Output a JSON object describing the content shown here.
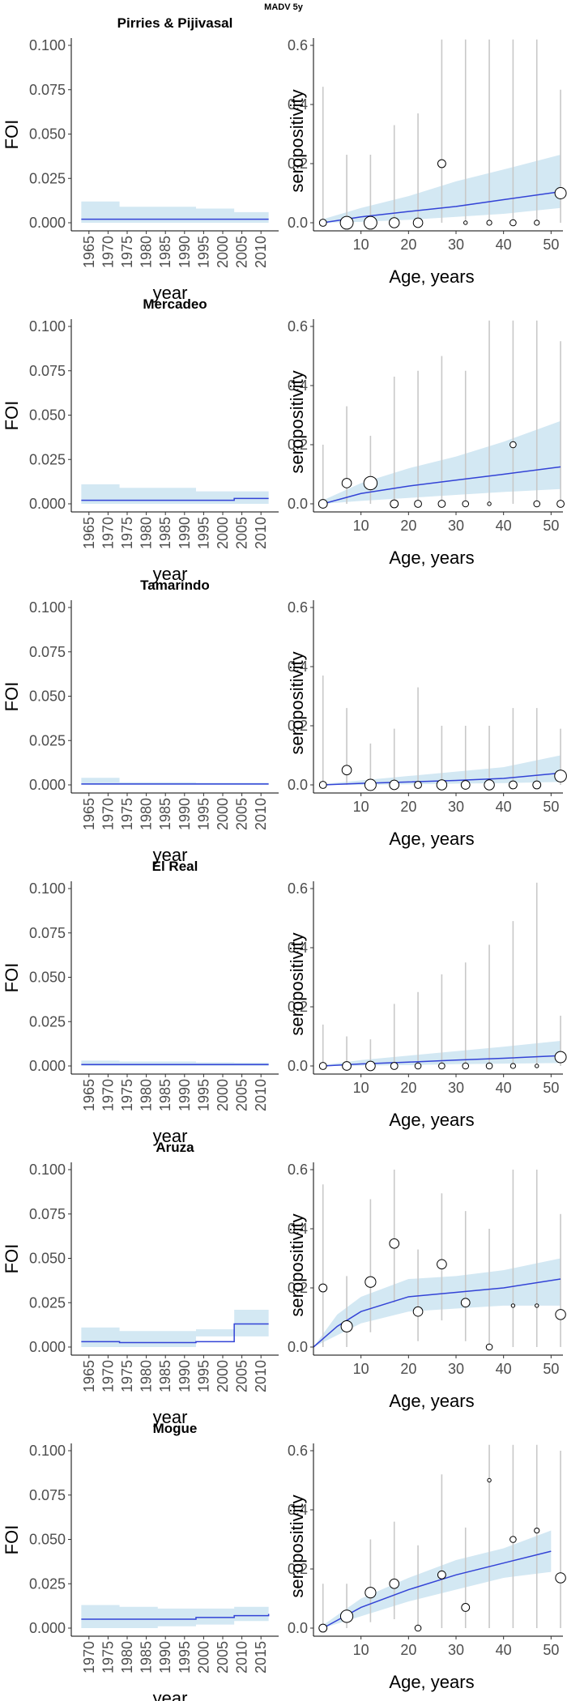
{
  "figure_title": "MADV 5y",
  "colors": {
    "line": "#3343d6",
    "ribbon": "#d3e8f3",
    "errorbar": "#c8c8c8",
    "axis": "#000000",
    "point_stroke": "#000000"
  },
  "left_axis": {
    "ylabel": "FOI",
    "xlabel": "year",
    "ylim": [
      0,
      0.1
    ],
    "yticks": [
      "0.000",
      "0.025",
      "0.050",
      "0.075",
      "0.100"
    ]
  },
  "right_axis": {
    "ylabel": "seropositivity",
    "xlabel": "Age, years",
    "ylim": [
      0,
      0.6
    ],
    "yticks": [
      "0.0",
      "0.2",
      "0.4",
      "0.6"
    ],
    "xticks": [
      10,
      20,
      30,
      40,
      50
    ]
  },
  "chart_data": [
    {
      "type": "line",
      "panel": "FOI",
      "title": "Pirries & Pijivasal",
      "xlabel": "year",
      "ylabel": "FOI",
      "ylim": [
        0,
        0.1
      ],
      "x_ticks": [
        "1965",
        "1970",
        "1975",
        "1980",
        "1985",
        "1990",
        "1995",
        "2000",
        "2005",
        "2010"
      ],
      "x": [
        1963,
        1973,
        1993,
        2003,
        2012
      ],
      "values": [
        0.002,
        0.002,
        0.002,
        0.002,
        0.002
      ],
      "lower": [
        0.0,
        0.0,
        0.0,
        0.0,
        0.0
      ],
      "upper": [
        0.012,
        0.009,
        0.008,
        0.006,
        0.006
      ]
    },
    {
      "type": "scatter",
      "panel": "seropositivity",
      "title": "Pirries & Pijivasal",
      "xlabel": "Age, years",
      "ylabel": "seropositivity",
      "ylim": [
        0,
        0.6
      ],
      "fit": {
        "x": [
          2,
          10,
          20,
          30,
          40,
          52
        ],
        "values": [
          0.0,
          0.02,
          0.038,
          0.055,
          0.078,
          0.105
        ],
        "lower": [
          0.0,
          0.003,
          0.01,
          0.02,
          0.03,
          0.05
        ],
        "upper": [
          0.012,
          0.05,
          0.09,
          0.14,
          0.18,
          0.23
        ]
      },
      "points": [
        {
          "age": 2,
          "value": 0.0,
          "lo": 0.0,
          "hi": 0.46,
          "n": 4
        },
        {
          "age": 7,
          "value": 0.0,
          "lo": 0.0,
          "hi": 0.23,
          "n": 13
        },
        {
          "age": 12,
          "value": 0.0,
          "lo": 0.0,
          "hi": 0.23,
          "n": 13
        },
        {
          "age": 17,
          "value": 0.0,
          "lo": 0.0,
          "hi": 0.33,
          "n": 8
        },
        {
          "age": 22,
          "value": 0.0,
          "lo": 0.0,
          "hi": 0.37,
          "n": 7
        },
        {
          "age": 27,
          "value": 0.2,
          "lo": 0.0,
          "hi": 0.62,
          "n": 5
        },
        {
          "age": 32,
          "value": 0.0,
          "lo": 0.0,
          "hi": 0.62,
          "n": 1
        },
        {
          "age": 37,
          "value": 0.0,
          "lo": 0.0,
          "hi": 0.62,
          "n": 2
        },
        {
          "age": 42,
          "value": 0.0,
          "lo": 0.0,
          "hi": 0.62,
          "n": 3
        },
        {
          "age": 47,
          "value": 0.0,
          "lo": 0.0,
          "hi": 0.62,
          "n": 2
        },
        {
          "age": 52,
          "value": 0.1,
          "lo": 0.0,
          "hi": 0.45,
          "n": 10
        }
      ]
    },
    {
      "type": "line",
      "panel": "FOI",
      "title": "Mercadeo",
      "xlabel": "year",
      "ylabel": "FOI",
      "ylim": [
        0,
        0.1
      ],
      "x_ticks": [
        "1965",
        "1970",
        "1975",
        "1980",
        "1985",
        "1990",
        "1995",
        "2000",
        "2005",
        "2010"
      ],
      "x": [
        1963,
        1973,
        1993,
        2003,
        2012
      ],
      "values": [
        0.002,
        0.002,
        0.002,
        0.003,
        0.003
      ],
      "lower": [
        0.0,
        0.0,
        0.0,
        0.0,
        0.0
      ],
      "upper": [
        0.011,
        0.009,
        0.007,
        0.007,
        0.007
      ]
    },
    {
      "type": "scatter",
      "panel": "seropositivity",
      "title": "Mercadeo",
      "xlabel": "Age, years",
      "ylabel": "seropositivity",
      "ylim": [
        0,
        0.6
      ],
      "fit": {
        "x": [
          2,
          10,
          20,
          30,
          40,
          52
        ],
        "values": [
          0.0,
          0.035,
          0.06,
          0.08,
          0.1,
          0.125
        ],
        "lower": [
          0.0,
          0.01,
          0.02,
          0.03,
          0.04,
          0.05
        ],
        "upper": [
          0.012,
          0.07,
          0.12,
          0.16,
          0.21,
          0.28
        ]
      },
      "points": [
        {
          "age": 2,
          "value": 0.0,
          "lo": 0.0,
          "hi": 0.2,
          "n": 6
        },
        {
          "age": 7,
          "value": 0.07,
          "lo": 0.0,
          "hi": 0.33,
          "n": 7
        },
        {
          "age": 12,
          "value": 0.07,
          "lo": 0.0,
          "hi": 0.23,
          "n": 14
        },
        {
          "age": 17,
          "value": 0.0,
          "lo": 0.0,
          "hi": 0.43,
          "n": 5
        },
        {
          "age": 22,
          "value": 0.0,
          "lo": 0.0,
          "hi": 0.45,
          "n": 4
        },
        {
          "age": 27,
          "value": 0.0,
          "lo": 0.0,
          "hi": 0.5,
          "n": 4
        },
        {
          "age": 32,
          "value": 0.0,
          "lo": 0.0,
          "hi": 0.45,
          "n": 3
        },
        {
          "age": 37,
          "value": 0.0,
          "lo": 0.0,
          "hi": 0.62,
          "n": 1
        },
        {
          "age": 42,
          "value": 0.2,
          "lo": 0.0,
          "hi": 0.62,
          "n": 3
        },
        {
          "age": 47,
          "value": 0.0,
          "lo": 0.0,
          "hi": 0.62,
          "n": 3
        },
        {
          "age": 52,
          "value": 0.0,
          "lo": 0.0,
          "hi": 0.55,
          "n": 4
        }
      ]
    },
    {
      "type": "line",
      "panel": "FOI",
      "title": "Tamarindo",
      "xlabel": "year",
      "ylabel": "FOI",
      "ylim": [
        0,
        0.1
      ],
      "x_ticks": [
        "1965",
        "1970",
        "1975",
        "1980",
        "1985",
        "1990",
        "1995",
        "2000",
        "2005",
        "2010"
      ],
      "x": [
        1963,
        1973,
        1993,
        2003,
        2012
      ],
      "values": [
        0.0005,
        0.0005,
        0.0005,
        0.0005,
        0.0005
      ],
      "lower": [
        0.0,
        0.0,
        0.0,
        0.0,
        0.0
      ],
      "upper": [
        0.004,
        0.0015,
        0.0012,
        0.0012,
        0.0012
      ]
    },
    {
      "type": "scatter",
      "panel": "seropositivity",
      "title": "Tamarindo",
      "xlabel": "Age, years",
      "ylabel": "seropositivity",
      "ylim": [
        0,
        0.6
      ],
      "fit": {
        "x": [
          2,
          10,
          20,
          30,
          40,
          52
        ],
        "values": [
          0.0,
          0.005,
          0.01,
          0.015,
          0.022,
          0.04
        ],
        "lower": [
          0.0,
          0.0,
          0.002,
          0.004,
          0.006,
          0.01
        ],
        "upper": [
          0.003,
          0.015,
          0.03,
          0.045,
          0.06,
          0.1
        ]
      },
      "points": [
        {
          "age": 2,
          "value": 0.0,
          "lo": 0.0,
          "hi": 0.37,
          "n": 4
        },
        {
          "age": 7,
          "value": 0.05,
          "lo": 0.0,
          "hi": 0.26,
          "n": 7
        },
        {
          "age": 12,
          "value": 0.0,
          "lo": 0.0,
          "hi": 0.14,
          "n": 10
        },
        {
          "age": 17,
          "value": 0.0,
          "lo": 0.0,
          "hi": 0.19,
          "n": 7
        },
        {
          "age": 22,
          "value": 0.0,
          "lo": 0.0,
          "hi": 0.33,
          "n": 4
        },
        {
          "age": 27,
          "value": 0.0,
          "lo": 0.0,
          "hi": 0.2,
          "n": 8
        },
        {
          "age": 32,
          "value": 0.0,
          "lo": 0.0,
          "hi": 0.2,
          "n": 6
        },
        {
          "age": 37,
          "value": 0.0,
          "lo": 0.0,
          "hi": 0.2,
          "n": 8
        },
        {
          "age": 42,
          "value": 0.0,
          "lo": 0.0,
          "hi": 0.26,
          "n": 5
        },
        {
          "age": 47,
          "value": 0.0,
          "lo": 0.0,
          "hi": 0.26,
          "n": 5
        },
        {
          "age": 52,
          "value": 0.03,
          "lo": 0.0,
          "hi": 0.19,
          "n": 11
        }
      ]
    },
    {
      "type": "line",
      "panel": "FOI",
      "title": "El Real",
      "xlabel": "year",
      "ylabel": "FOI",
      "ylim": [
        0,
        0.1
      ],
      "x_ticks": [
        "1965",
        "1970",
        "1975",
        "1980",
        "1985",
        "1990",
        "1995",
        "2000",
        "2005",
        "2010"
      ],
      "x": [
        1963,
        1973,
        1993,
        2003,
        2012
      ],
      "values": [
        0.0008,
        0.0008,
        0.0008,
        0.0008,
        0.0008
      ],
      "lower": [
        0.0,
        0.0,
        0.0,
        0.0,
        0.0
      ],
      "upper": [
        0.003,
        0.0025,
        0.002,
        0.0018,
        0.0018
      ]
    },
    {
      "type": "scatter",
      "panel": "seropositivity",
      "title": "El Real",
      "xlabel": "Age, years",
      "ylabel": "seropositivity",
      "ylim": [
        0,
        0.6
      ],
      "fit": {
        "x": [
          2,
          10,
          20,
          30,
          40,
          52
        ],
        "values": [
          0.0,
          0.007,
          0.013,
          0.02,
          0.026,
          0.035
        ],
        "lower": [
          0.0,
          0.001,
          0.003,
          0.006,
          0.008,
          0.01
        ],
        "upper": [
          0.003,
          0.02,
          0.035,
          0.05,
          0.065,
          0.085
        ]
      },
      "points": [
        {
          "age": 2,
          "value": 0.0,
          "lo": 0.0,
          "hi": 0.14,
          "n": 4
        },
        {
          "age": 7,
          "value": 0.0,
          "lo": 0.0,
          "hi": 0.1,
          "n": 6
        },
        {
          "age": 12,
          "value": 0.0,
          "lo": 0.0,
          "hi": 0.09,
          "n": 7
        },
        {
          "age": 17,
          "value": 0.0,
          "lo": 0.0,
          "hi": 0.21,
          "n": 4
        },
        {
          "age": 22,
          "value": 0.0,
          "lo": 0.0,
          "hi": 0.25,
          "n": 3
        },
        {
          "age": 27,
          "value": 0.0,
          "lo": 0.0,
          "hi": 0.31,
          "n": 3
        },
        {
          "age": 32,
          "value": 0.0,
          "lo": 0.0,
          "hi": 0.35,
          "n": 3
        },
        {
          "age": 37,
          "value": 0.0,
          "lo": 0.0,
          "hi": 0.41,
          "n": 3
        },
        {
          "age": 42,
          "value": 0.0,
          "lo": 0.0,
          "hi": 0.49,
          "n": 2
        },
        {
          "age": 47,
          "value": 0.0,
          "lo": 0.0,
          "hi": 0.62,
          "n": 1
        },
        {
          "age": 52,
          "value": 0.03,
          "lo": 0.0,
          "hi": 0.17,
          "n": 10
        }
      ]
    },
    {
      "type": "line",
      "panel": "FOI",
      "title": "Aruza",
      "xlabel": "year",
      "ylabel": "FOI",
      "ylim": [
        0,
        0.1
      ],
      "x_ticks": [
        "1965",
        "1970",
        "1975",
        "1980",
        "1985",
        "1990",
        "1995",
        "2000",
        "2005",
        "2010"
      ],
      "x": [
        1963,
        1973,
        1993,
        2003,
        2012
      ],
      "values": [
        0.003,
        0.0025,
        0.003,
        0.013,
        0.013
      ],
      "lower": [
        0.0,
        0.0,
        0.0,
        0.006,
        0.006
      ],
      "upper": [
        0.011,
        0.009,
        0.01,
        0.021,
        0.021
      ]
    },
    {
      "type": "scatter",
      "panel": "seropositivity",
      "title": "Aruza",
      "xlabel": "Age, years",
      "ylabel": "seropositivity",
      "ylim": [
        0,
        0.6
      ],
      "fit": {
        "x": [
          0,
          5,
          10,
          20,
          30,
          40,
          52
        ],
        "values": [
          0.0,
          0.07,
          0.12,
          0.17,
          0.185,
          0.2,
          0.23
        ],
        "lower": [
          0.0,
          0.04,
          0.08,
          0.12,
          0.13,
          0.14,
          0.14
        ],
        "upper": [
          0.0,
          0.11,
          0.17,
          0.23,
          0.24,
          0.26,
          0.3
        ]
      },
      "points": [
        {
          "age": 2,
          "value": 0.2,
          "lo": 0.0,
          "hi": 0.55,
          "n": 5
        },
        {
          "age": 7,
          "value": 0.07,
          "lo": 0.0,
          "hi": 0.24,
          "n": 10
        },
        {
          "age": 12,
          "value": 0.22,
          "lo": 0.05,
          "hi": 0.5,
          "n": 9
        },
        {
          "age": 17,
          "value": 0.35,
          "lo": 0.15,
          "hi": 0.6,
          "n": 7
        },
        {
          "age": 22,
          "value": 0.12,
          "lo": 0.02,
          "hi": 0.33,
          "n": 7
        },
        {
          "age": 27,
          "value": 0.28,
          "lo": 0.09,
          "hi": 0.52,
          "n": 7
        },
        {
          "age": 32,
          "value": 0.15,
          "lo": 0.02,
          "hi": 0.46,
          "n": 6
        },
        {
          "age": 37,
          "value": 0.0,
          "lo": 0.0,
          "hi": 0.4,
          "n": 3
        },
        {
          "age": 42,
          "value": 0.14,
          "lo": 0.0,
          "hi": 0.6,
          "n": 1
        },
        {
          "age": 47,
          "value": 0.14,
          "lo": 0.0,
          "hi": 0.6,
          "n": 1
        },
        {
          "age": 52,
          "value": 0.11,
          "lo": 0.0,
          "hi": 0.45,
          "n": 8
        }
      ]
    },
    {
      "type": "line",
      "panel": "FOI",
      "title": "Mogue",
      "xlabel": "year",
      "ylabel": "FOI",
      "ylim": [
        0,
        0.1
      ],
      "x_ticks": [
        "1970",
        "1975",
        "1980",
        "1985",
        "1990",
        "1995",
        "2000",
        "2005",
        "2010",
        "2015"
      ],
      "x": [
        1968,
        1978,
        1988,
        1998,
        2008,
        2017
      ],
      "values": [
        0.005,
        0.005,
        0.005,
        0.006,
        0.007,
        0.008
      ],
      "lower": [
        0.0,
        0.0,
        0.0,
        0.001,
        0.002,
        0.004
      ],
      "upper": [
        0.013,
        0.012,
        0.011,
        0.011,
        0.012,
        0.012
      ]
    },
    {
      "type": "scatter",
      "panel": "seropositivity",
      "title": "Mogue",
      "xlabel": "Age, years",
      "ylabel": "seropositivity",
      "ylim": [
        0,
        0.6
      ],
      "fit": {
        "x": [
          2,
          10,
          20,
          30,
          40,
          50
        ],
        "values": [
          0.0,
          0.07,
          0.13,
          0.18,
          0.22,
          0.26
        ],
        "lower": [
          0.0,
          0.04,
          0.09,
          0.13,
          0.17,
          0.19
        ],
        "upper": [
          0.01,
          0.1,
          0.17,
          0.23,
          0.27,
          0.33
        ]
      },
      "points": [
        {
          "age": 2,
          "value": 0.0,
          "lo": 0.0,
          "hi": 0.15,
          "n": 5
        },
        {
          "age": 7,
          "value": 0.04,
          "lo": 0.0,
          "hi": 0.15,
          "n": 12
        },
        {
          "age": 12,
          "value": 0.12,
          "lo": 0.02,
          "hi": 0.3,
          "n": 9
        },
        {
          "age": 17,
          "value": 0.15,
          "lo": 0.03,
          "hi": 0.36,
          "n": 7
        },
        {
          "age": 22,
          "value": 0.0,
          "lo": 0.0,
          "hi": 0.28,
          "n": 3
        },
        {
          "age": 27,
          "value": 0.18,
          "lo": 0.0,
          "hi": 0.52,
          "n": 5
        },
        {
          "age": 32,
          "value": 0.07,
          "lo": 0.0,
          "hi": 0.34,
          "n": 5
        },
        {
          "age": 37,
          "value": 0.5,
          "lo": 0.0,
          "hi": 0.62,
          "n": 1
        },
        {
          "age": 42,
          "value": 0.3,
          "lo": 0.0,
          "hi": 0.62,
          "n": 3
        },
        {
          "age": 47,
          "value": 0.33,
          "lo": 0.0,
          "hi": 0.62,
          "n": 2
        },
        {
          "age": 52,
          "value": 0.17,
          "lo": 0.0,
          "hi": 0.6,
          "n": 8
        }
      ]
    }
  ]
}
